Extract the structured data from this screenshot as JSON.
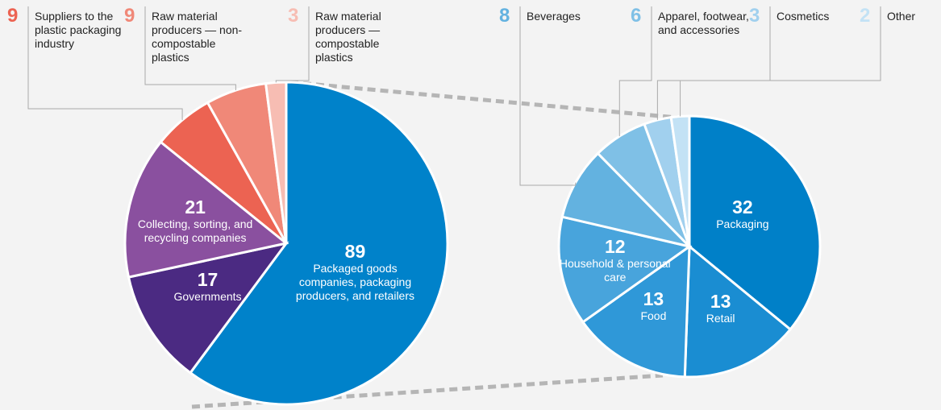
{
  "chart_data": [
    {
      "type": "pie",
      "categories": [
        "Packaged goods companies, packaging producers, and retailers",
        "Governments",
        "Collecting, sorting, and recycling companies",
        "Suppliers to the plastic packaging industry",
        "Raw material producers — non-compostable plastics",
        "Raw material producers — compostable plastics"
      ],
      "values": [
        89,
        17,
        21,
        9,
        9,
        3
      ],
      "colors": [
        "#0082ca",
        "#4b2a82",
        "#8a509f",
        "#ec6352",
        "#f08878",
        "#f7bdb3"
      ]
    },
    {
      "type": "pie",
      "categories": [
        "Packaging",
        "Retail",
        "Food",
        "Household & personal care",
        "Beverages",
        "Apparel, footwear, and accessories",
        "Cosmetics",
        "Other"
      ],
      "values": [
        32,
        13,
        13,
        12,
        8,
        6,
        3,
        2
      ],
      "colors": [
        "#0080c8",
        "#1a8dd2",
        "#2f98d8",
        "#48a4dc",
        "#63b2e0",
        "#7fc0e6",
        "#a1d0ee",
        "#c3e2f5"
      ]
    }
  ]
}
